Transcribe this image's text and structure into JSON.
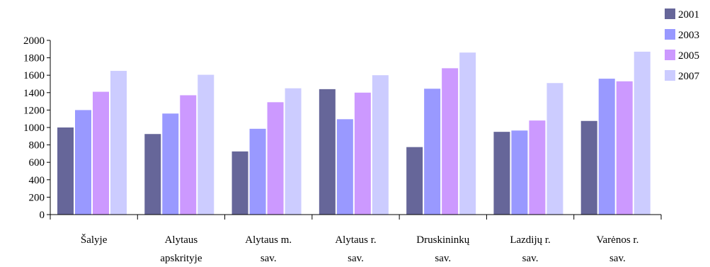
{
  "chart_data": {
    "type": "bar",
    "title": "",
    "xlabel": "",
    "ylabel": "",
    "ylim": [
      0,
      2000
    ],
    "yticks": [
      0,
      200,
      400,
      600,
      800,
      1000,
      1200,
      1400,
      1600,
      1800,
      2000
    ],
    "grid": false,
    "legend_position": "top-right",
    "categories": [
      [
        "Šalyje"
      ],
      [
        "Alytaus",
        "apskrityje"
      ],
      [
        "Alytaus m.",
        "sav."
      ],
      [
        "Alytaus r.",
        "sav."
      ],
      [
        "Druskininkų",
        "sav."
      ],
      [
        "Lazdijų r.",
        "sav."
      ],
      [
        "Varėnos r.",
        "sav."
      ]
    ],
    "series": [
      {
        "name": "2001",
        "color": "#666699",
        "values": [
          1000,
          925,
          725,
          1440,
          775,
          950,
          1075
        ]
      },
      {
        "name": "2003",
        "color": "#9999FF",
        "values": [
          1200,
          1160,
          985,
          1095,
          1445,
          965,
          1560
        ]
      },
      {
        "name": "2005",
        "color": "#CC99FF",
        "values": [
          1410,
          1370,
          1290,
          1400,
          1680,
          1080,
          1530
        ]
      },
      {
        "name": "2007",
        "color": "#CCCCFF",
        "values": [
          1650,
          1605,
          1450,
          1600,
          1860,
          1510,
          1870
        ]
      }
    ]
  }
}
